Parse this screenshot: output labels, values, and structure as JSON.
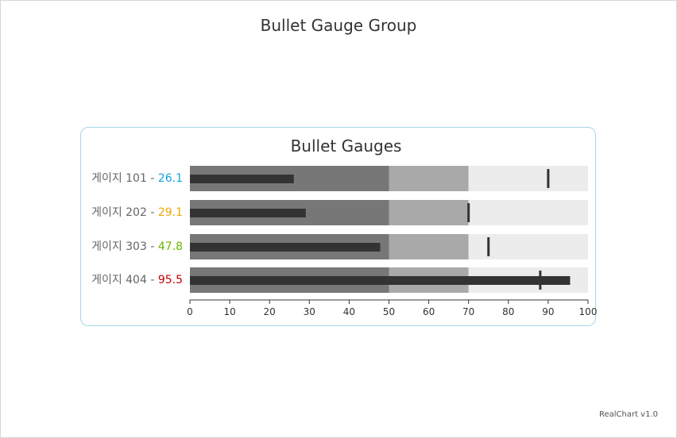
{
  "credits": "RealChart v1.0",
  "chart_data": {
    "type": "bullet",
    "title": "Bullet Gauge Group",
    "group_title": "Bullet Gauges",
    "axis": {
      "min": 0,
      "max": 100,
      "ticks": [
        0,
        10,
        20,
        30,
        40,
        50,
        60,
        70,
        80,
        90,
        100
      ]
    },
    "bands": [
      {
        "from": 0,
        "to": 50,
        "color": "#777777"
      },
      {
        "from": 50,
        "to": 70,
        "color": "#a9a9a9"
      },
      {
        "from": 70,
        "to": 100,
        "color": "#ececec"
      }
    ],
    "bar_color": "#333333",
    "gauges": [
      {
        "name": "게이지 101",
        "value": 26.1,
        "target": 90,
        "value_text": "26.1",
        "value_color": "#0ea5dd"
      },
      {
        "name": "게이지 202",
        "value": 29.1,
        "target": 70,
        "value_text": "29.1",
        "value_color": "#f0a500"
      },
      {
        "name": "게이지 303",
        "value": 47.8,
        "target": 75,
        "value_text": "47.8",
        "value_color": "#6ab800"
      },
      {
        "name": "게이지 404",
        "value": 95.5,
        "target": 88,
        "value_text": "95.5",
        "value_color": "#c00000"
      }
    ]
  }
}
